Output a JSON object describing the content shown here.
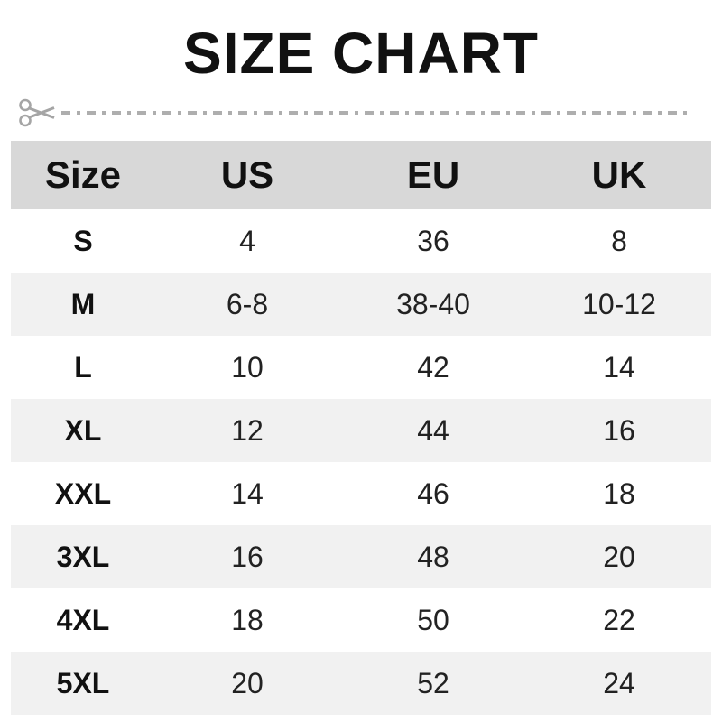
{
  "chart_data": {
    "type": "table",
    "title": "SIZE CHART",
    "columns": [
      "Size",
      "US",
      "EU",
      "UK"
    ],
    "rows": [
      [
        "S",
        "4",
        "36",
        "8"
      ],
      [
        "M",
        "6-8",
        "38-40",
        "10-12"
      ],
      [
        "L",
        "10",
        "42",
        "14"
      ],
      [
        "XL",
        "12",
        "44",
        "16"
      ],
      [
        "XXL",
        "14",
        "46",
        "18"
      ],
      [
        "3XL",
        "16",
        "48",
        "20"
      ],
      [
        "4XL",
        "18",
        "50",
        "22"
      ],
      [
        "5XL",
        "20",
        "52",
        "24"
      ]
    ],
    "layout_hints": {
      "header_background": "#d8d8d8",
      "alt_row_background": "#f1f1f1",
      "row_background": "#ffffff",
      "text_color": "#1a1a1a",
      "alternating_rows": true
    }
  },
  "cut_line": {
    "icon": "scissors-icon",
    "color": "#a5a5a5",
    "style": "dash-dot"
  }
}
